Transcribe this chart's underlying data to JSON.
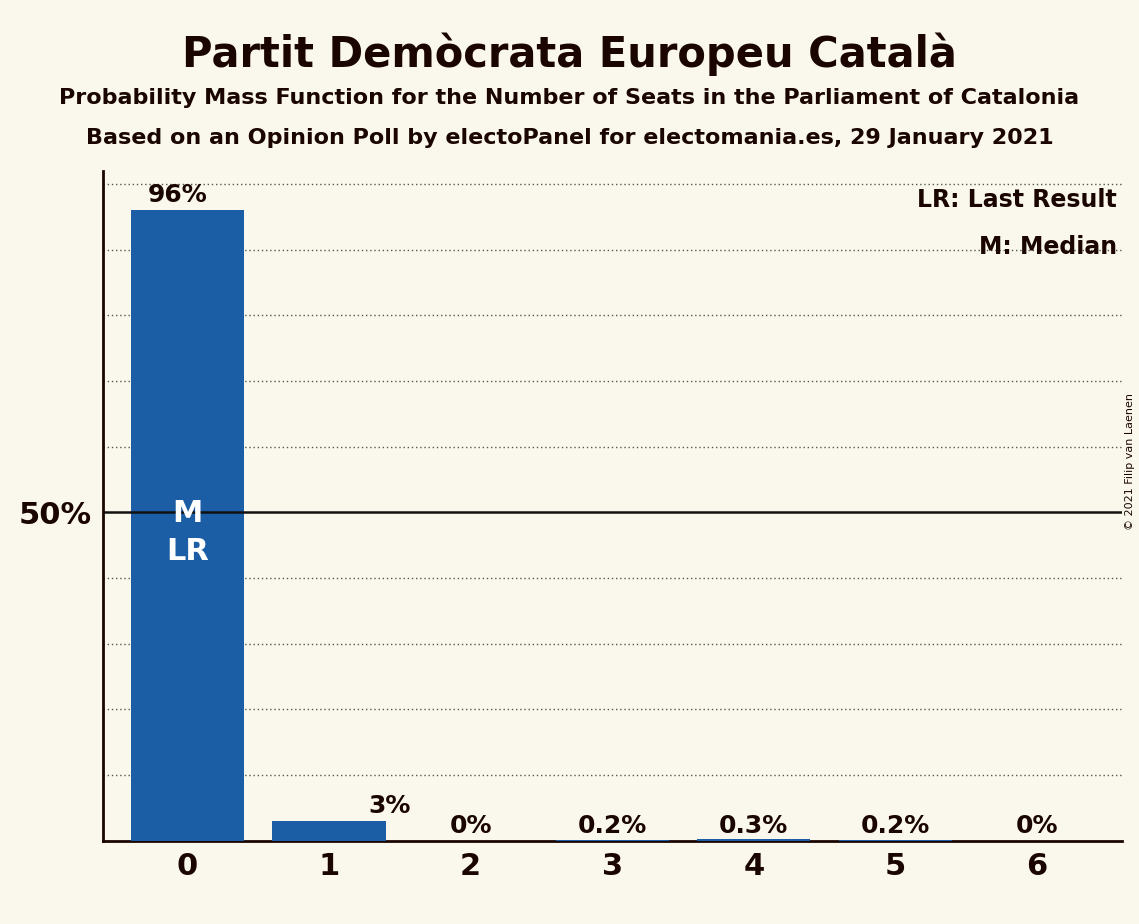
{
  "title": "Partit Demòcrata Europeu Català",
  "subtitle1": "Probability Mass Function for the Number of Seats in the Parliament of Catalonia",
  "subtitle2": "Based on an Opinion Poll by electoPanel for electomania.es, 29 January 2021",
  "copyright": "© 2021 Filip van Laenen",
  "categories": [
    0,
    1,
    2,
    3,
    4,
    5,
    6
  ],
  "values": [
    0.96,
    0.03,
    0.0,
    0.002,
    0.003,
    0.002,
    0.0
  ],
  "bar_labels": [
    "96%",
    "3%",
    "0%",
    "0.2%",
    "0.3%",
    "0.2%",
    "0%"
  ],
  "bar_color": "#1b5ea6",
  "background_color": "#faf8ec",
  "text_color": "#1a0500",
  "ylim_max": 1.02,
  "y50_label": "50%",
  "legend_lr": "LR: Last Result",
  "legend_m": "M: Median",
  "dotted_line_color": "#555555",
  "solid_line_color": "#111111",
  "title_fontsize": 30,
  "subtitle_fontsize": 16,
  "bar_label_fontsize": 18,
  "axis_label_fontsize": 22,
  "legend_fontsize": 17,
  "median_label_fontsize": 22,
  "dotted_levels": [
    0.1,
    0.2,
    0.3,
    0.4,
    0.6,
    0.7,
    0.8,
    0.9,
    1.0
  ],
  "copyright_fontsize": 8
}
